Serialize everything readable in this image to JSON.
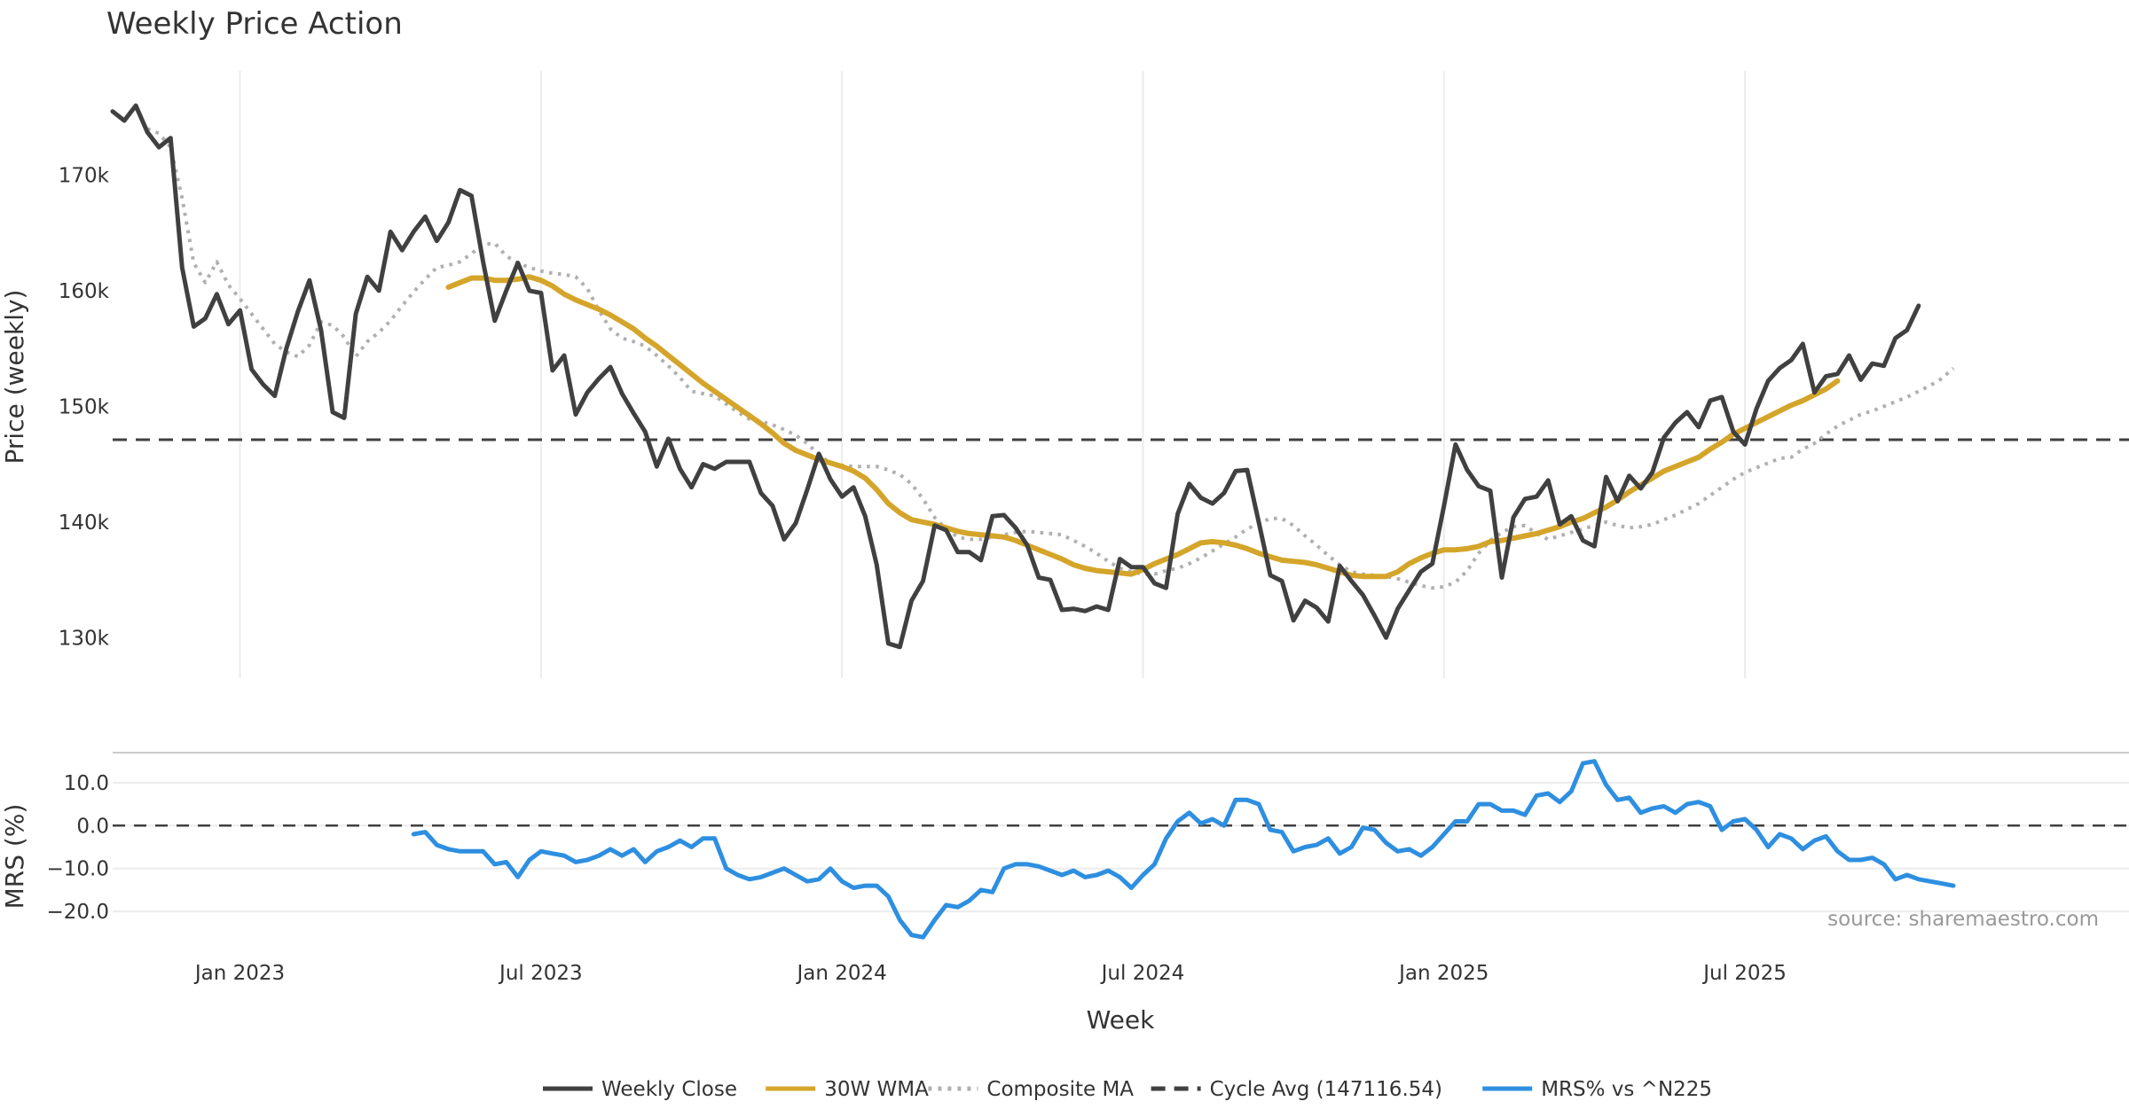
{
  "chart_data": {
    "type": "line",
    "title": "Weekly Price Action",
    "xlabel": "Week",
    "x_ticks": [
      "Jan 2023",
      "Jul 2023",
      "Jan 2024",
      "Jul 2024",
      "Jan 2025",
      "Jul 2025"
    ],
    "source": "source: sharemaestro.com",
    "price_panel": {
      "ylabel": "Price (weekly)",
      "ylim": [
        126500,
        179000
      ],
      "y_ticks": [
        130000,
        140000,
        150000,
        160000,
        170000
      ],
      "y_tick_labels": [
        "130k",
        "140k",
        "150k",
        "160k",
        "170k"
      ],
      "cycle_avg": 147116.54,
      "series": [
        {
          "name": "Weekly Close",
          "color": "#404040",
          "style": "solid",
          "width": 5,
          "start_index": 0,
          "values": [
            175500,
            174700,
            176000,
            173700,
            172400,
            173200,
            162000,
            156900,
            157600,
            159700,
            157100,
            158300,
            153200,
            151900,
            150900,
            155000,
            158200,
            160900,
            156600,
            149500,
            149000,
            158000,
            161200,
            160000,
            165100,
            163500,
            165100,
            166400,
            164300,
            165900,
            168700,
            168200,
            162500,
            157400,
            160000,
            162400,
            160000,
            159800,
            153100,
            154400,
            149300,
            151200,
            152400,
            153400,
            151100,
            149400,
            147800,
            144800,
            147200,
            144600,
            143000,
            145000,
            144600,
            145200,
            145200,
            145200,
            142500,
            141400,
            138500,
            139900,
            142800,
            145900,
            143700,
            142200,
            143000,
            140500,
            136300,
            129500,
            129200,
            133200,
            134900,
            139700,
            139300,
            137400,
            137400,
            136700,
            140500,
            140600,
            139500,
            138000,
            135200,
            135000,
            132400,
            132500,
            132300,
            132700,
            132400,
            136800,
            136100,
            136100,
            134700,
            134300,
            140700,
            143300,
            142100,
            141600,
            142500,
            144400,
            144500,
            140000,
            135400,
            134900,
            131500,
            133200,
            132600,
            131400,
            136200,
            134900,
            133700,
            131900,
            130000,
            132500,
            134100,
            135700,
            136400,
            141400,
            146700,
            144500,
            143100,
            142700,
            135200,
            140400,
            142000,
            142200,
            143600,
            139800,
            140500,
            138400,
            137900,
            143900,
            141800,
            144000,
            142900,
            144300,
            147300,
            148600,
            149500,
            148200,
            150500,
            150800,
            147800,
            146700,
            149800,
            152200,
            153300,
            154000,
            155400,
            151200,
            152600,
            152800,
            154400,
            152300,
            153700,
            153500,
            155900,
            156600,
            158700
          ]
        },
        {
          "name": "30W WMA",
          "color": "#D4A52A",
          "style": "solid",
          "width": 6,
          "start_index": 29,
          "values": [
            160300,
            160700,
            161100,
            161100,
            160900,
            160900,
            161000,
            161200,
            160900,
            160400,
            159700,
            159200,
            158800,
            158400,
            157900,
            157300,
            156700,
            155900,
            155200,
            154400,
            153600,
            152800,
            152000,
            151300,
            150600,
            149900,
            149200,
            148500,
            147700,
            146800,
            146200,
            145800,
            145400,
            145100,
            144800,
            144400,
            143800,
            142800,
            141600,
            140800,
            140200,
            140000,
            139800,
            139500,
            139200,
            139000,
            138900,
            138800,
            138700,
            138400,
            138000,
            137600,
            137200,
            136800,
            136300,
            136000,
            135800,
            135700,
            135600,
            135500,
            135900,
            136400,
            136800,
            137200,
            137700,
            138200,
            138300,
            138200,
            138000,
            137700,
            137300,
            137000,
            136700,
            136600,
            136500,
            136300,
            136000,
            135700,
            135400,
            135300,
            135300,
            135300,
            135700,
            136400,
            136900,
            137300,
            137600,
            137600,
            137700,
            137900,
            138300,
            138400,
            138600,
            138800,
            139000,
            139300,
            139600,
            140000,
            140300,
            140800,
            141300,
            141900,
            142600,
            143200,
            143800,
            144400,
            144800,
            145200,
            145600,
            146300,
            146900,
            147600,
            148100,
            148600,
            149100,
            149600,
            150100,
            150500,
            151000,
            151500,
            152200
          ]
        },
        {
          "name": "Composite MA",
          "color": "#B0B0B0",
          "style": "dotted",
          "width": 4,
          "start_index": 3,
          "values": [
            174000,
            173600,
            172400,
            168000,
            162400,
            160700,
            162500,
            160500,
            159300,
            158000,
            156700,
            155400,
            154700,
            154300,
            155300,
            157300,
            157000,
            156000,
            154300,
            155600,
            156400,
            157400,
            158700,
            159900,
            161000,
            162000,
            162200,
            162500,
            163200,
            164000,
            164100,
            163000,
            162400,
            162000,
            161700,
            161500,
            161400,
            161200,
            160200,
            158300,
            156700,
            155900,
            155600,
            155200,
            154400,
            153500,
            152500,
            151300,
            151100,
            150900,
            150200,
            149500,
            148900,
            148700,
            148400,
            148000,
            147500,
            146800,
            145800,
            145100,
            144900,
            144800,
            144800,
            144800,
            144500,
            144100,
            143300,
            142000,
            140400,
            139400,
            138700,
            138500,
            138500,
            138700,
            138900,
            139100,
            139200,
            139100,
            139000,
            138900,
            138400,
            137900,
            137300,
            136600,
            136000,
            135700,
            135500,
            135500,
            135800,
            136000,
            136400,
            136900,
            137500,
            138100,
            138700,
            139400,
            139900,
            140300,
            140300,
            139700,
            138800,
            138000,
            137100,
            136300,
            135700,
            135500,
            135400,
            135300,
            135100,
            134800,
            134500,
            134300,
            134400,
            134800,
            135800,
            137300,
            138400,
            139100,
            139600,
            139700,
            139000,
            138500,
            138800,
            139100,
            139400,
            139700,
            140000,
            139700,
            139500,
            139600,
            139800,
            140200,
            140600,
            141100,
            141600,
            142300,
            143000,
            143700,
            144300,
            144700,
            145100,
            145500,
            145600,
            146300,
            146800,
            147600,
            148300,
            148800,
            149300,
            149600,
            150000,
            150400,
            150800,
            151300,
            151800,
            152400,
            153300
          ]
        },
        {
          "name": "Cycle Avg (147116.54)",
          "color": "#404040",
          "style": "dashed",
          "width": 3
        }
      ]
    },
    "mrs_panel": {
      "ylabel": "MRS (%)",
      "ylim": [
        -27,
        17
      ],
      "y_ticks": [
        -20.0,
        -10.0,
        0.0,
        10.0
      ],
      "y_tick_labels": [
        "−20.0",
        "−10.0",
        "0.0",
        "10.0"
      ],
      "zero_line": 0,
      "series": [
        {
          "name": "MRS% vs ^N225",
          "color": "#2E8FE0",
          "style": "solid",
          "width": 5,
          "start_index": 26,
          "values": [
            -2.0,
            -1.5,
            -4.5,
            -5.5,
            -6.0,
            -6.0,
            -6.0,
            -9.0,
            -8.5,
            -12.0,
            -8.0,
            -6.0,
            -6.5,
            -7.0,
            -8.5,
            -8.0,
            -7.0,
            -5.5,
            -7.0,
            -5.5,
            -8.5,
            -6.0,
            -5.0,
            -3.5,
            -5.0,
            -3.0,
            -3.0,
            -10.0,
            -11.5,
            -12.5,
            -12.0,
            -11.0,
            -10.0,
            -11.5,
            -13.0,
            -12.5,
            -10.0,
            -13.0,
            -14.5,
            -14.0,
            -14.0,
            -16.5,
            -22.0,
            -25.5,
            -26.0,
            -22.0,
            -18.5,
            -19.0,
            -17.5,
            -15.0,
            -15.5,
            -10.0,
            -9.0,
            -9.0,
            -9.5,
            -10.5,
            -11.5,
            -10.5,
            -12.0,
            -11.5,
            -10.5,
            -12.0,
            -14.5,
            -11.5,
            -9.0,
            -3.0,
            1.0,
            3.0,
            0.5,
            1.5,
            0.0,
            6.0,
            6.0,
            5.0,
            -1.0,
            -1.5,
            -6.0,
            -5.0,
            -4.5,
            -3.0,
            -6.5,
            -5.0,
            -0.5,
            -1.0,
            -4.0,
            -6.0,
            -5.5,
            -7.0,
            -5.0,
            -2.0,
            1.0,
            1.0,
            5.0,
            5.0,
            3.5,
            3.5,
            2.5,
            7.0,
            7.5,
            5.5,
            8.0,
            14.5,
            15.0,
            9.5,
            6.0,
            6.5,
            3.0,
            4.0,
            4.5,
            3.0,
            5.0,
            5.5,
            4.5,
            -1.0,
            1.0,
            1.5,
            -1.0,
            -5.0,
            -2.0,
            -3.0,
            -5.5,
            -3.5,
            -2.5,
            -6.0,
            -8.0,
            -8.0,
            -7.5,
            -9.0,
            -12.5,
            -11.5,
            -12.5,
            -13.0,
            -13.5,
            -14.0
          ]
        }
      ]
    },
    "legend": {
      "placement": "bottom-center",
      "items": [
        {
          "label": "Weekly Close",
          "color": "#404040",
          "style": "solid"
        },
        {
          "label": "30W WMA",
          "color": "#D4A52A",
          "style": "solid"
        },
        {
          "label": "Composite MA",
          "color": "#B0B0B0",
          "style": "dotted"
        },
        {
          "label": "Cycle Avg (147116.54)",
          "color": "#404040",
          "style": "dashed"
        },
        {
          "label": "MRS% vs ^N225",
          "color": "#2E8FE0",
          "style": "solid"
        }
      ]
    }
  }
}
